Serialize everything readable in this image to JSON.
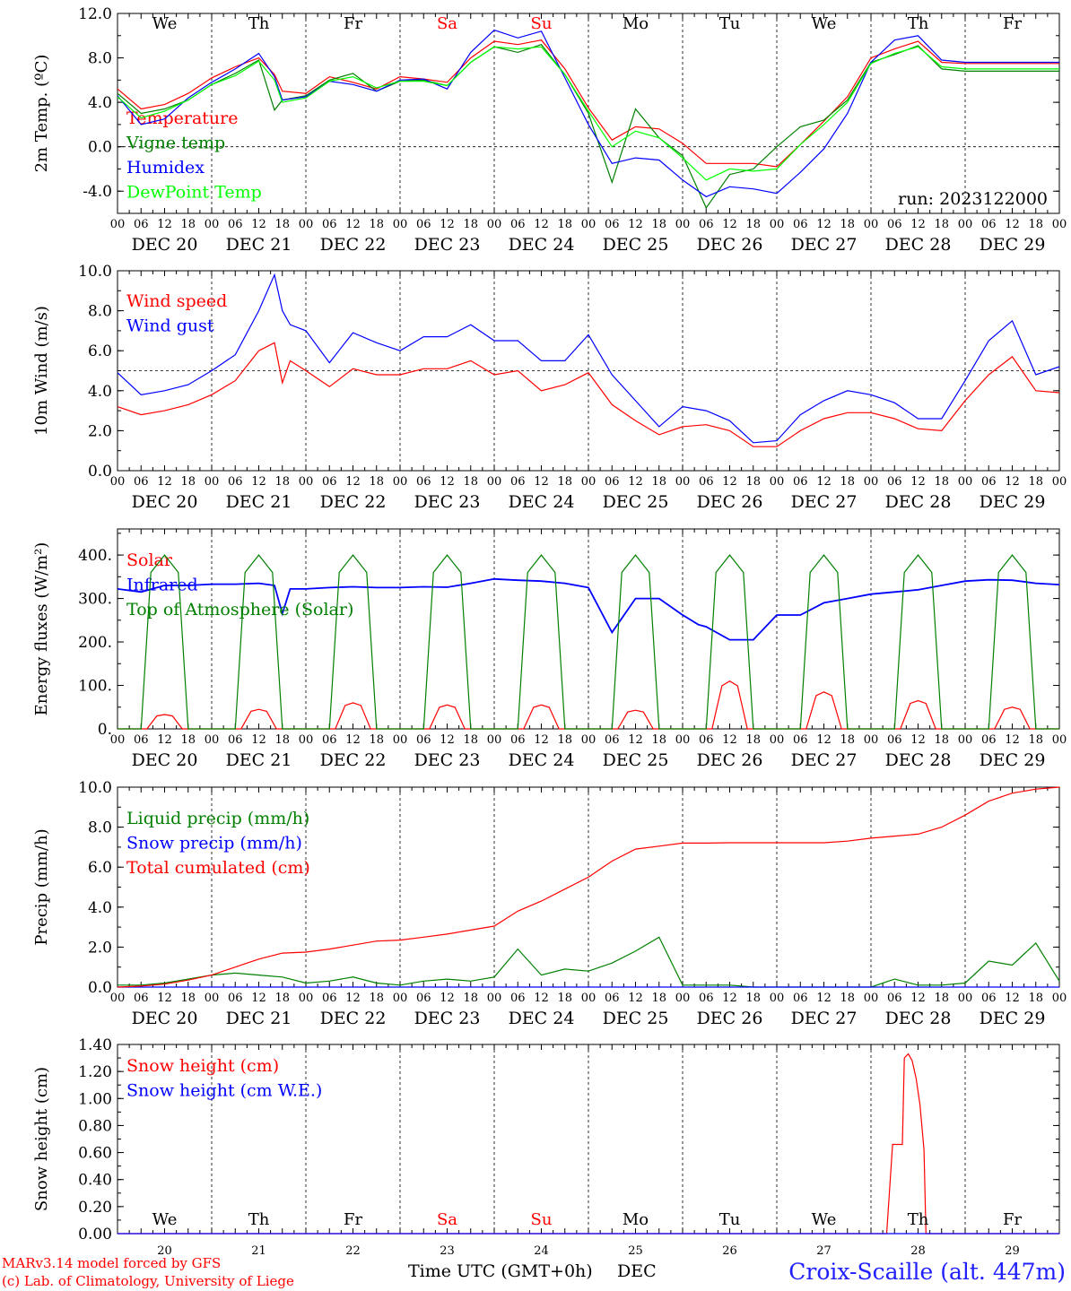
{
  "station": "Croix-Scaille (alt. 447m)",
  "run": "run: 2023122000",
  "credits": {
    "line1": "MARv3.14 model forced by GFS",
    "line2": "(c) Lab. of Climatology, University of Liege"
  },
  "xaxis": {
    "title": "Time UTC (GMT+0h)",
    "month": "DEC",
    "hour_labels": [
      "00",
      "06",
      "12",
      "18"
    ],
    "date_labels": [
      "DEC 20",
      "DEC 21",
      "DEC 22",
      "DEC 23",
      "DEC 24",
      "DEC 25",
      "DEC 26",
      "DEC 27",
      "DEC 28",
      "DEC 29"
    ],
    "day_numbers": [
      "20",
      "21",
      "22",
      "23",
      "24",
      "25",
      "26",
      "27",
      "28",
      "29"
    ],
    "weekdays": [
      "We",
      "Th",
      "Fr",
      "Sa",
      "Su",
      "Mo",
      "Tu",
      "We",
      "Th",
      "Fr"
    ],
    "weekday_colors": [
      "#000000",
      "#000000",
      "#000000",
      "#ff0000",
      "#ff0000",
      "#000000",
      "#000000",
      "#000000",
      "#000000",
      "#000000"
    ]
  },
  "colors": {
    "red": "#ff0000",
    "green": "#008000",
    "blue": "#0000ff",
    "lightgreen": "#00ff00"
  },
  "chart_data": [
    {
      "type": "line",
      "ylabel": "2m Temp. (ºC)",
      "ylim": [
        -6,
        12
      ],
      "yticks": [
        "-4.0",
        "0.0",
        "4.0",
        "8.0",
        "12.0"
      ],
      "ytick_values": [
        -4,
        0,
        4,
        8,
        12
      ],
      "reference_line": 0,
      "x_hours": [
        0,
        6,
        12,
        18,
        24,
        30,
        36,
        40,
        42,
        48,
        54,
        60,
        66,
        72,
        78,
        84,
        90,
        96,
        102,
        108,
        114,
        120,
        126,
        132,
        138,
        144,
        150,
        156,
        162,
        168,
        174,
        180,
        186,
        192,
        198,
        204,
        210,
        216,
        222,
        228,
        234,
        240
      ],
      "series": [
        {
          "name": "Temperature",
          "color": "#ff0000",
          "values": [
            5.2,
            3.4,
            3.8,
            4.8,
            6.2,
            7.2,
            8.0,
            6.5,
            5.0,
            4.8,
            6.3,
            5.8,
            5.2,
            6.3,
            6.1,
            5.8,
            8.0,
            9.5,
            9.2,
            9.6,
            7.0,
            3.5,
            0.6,
            1.8,
            1.6,
            0.3,
            -1.5,
            -1.5,
            -1.5,
            -1.8,
            0.2,
            2.3,
            4.5,
            8.0,
            8.8,
            9.5,
            7.6,
            7.5,
            7.5,
            7.5,
            7.5,
            7.5
          ]
        },
        {
          "name": "Vigne temp",
          "color": "#008000",
          "values": [
            4.8,
            3.0,
            3.4,
            4.2,
            5.6,
            6.6,
            7.8,
            3.3,
            4.2,
            4.6,
            6.0,
            6.6,
            5.0,
            5.9,
            6.0,
            5.5,
            7.6,
            9.0,
            8.5,
            9.2,
            6.5,
            3.0,
            -3.2,
            3.4,
            0.8,
            -0.8,
            -5.5,
            -2.5,
            -2.0,
            0.0,
            1.8,
            2.4,
            4.2,
            7.6,
            8.3,
            9.1,
            7.0,
            6.8,
            6.8,
            6.8,
            6.8,
            6.8
          ]
        },
        {
          "name": "Humidex",
          "color": "#0000ff",
          "values": [
            4.6,
            2.0,
            2.5,
            4.4,
            5.8,
            7.0,
            8.4,
            6.3,
            4.2,
            4.5,
            5.9,
            5.6,
            5.0,
            6.0,
            6.1,
            5.2,
            8.5,
            10.5,
            9.8,
            10.4,
            6.2,
            2.0,
            -1.5,
            -1.0,
            -1.2,
            -3.0,
            -4.5,
            -3.6,
            -3.8,
            -4.2,
            -2.3,
            -0.2,
            3.0,
            7.6,
            9.6,
            10.0,
            7.8,
            7.6,
            7.6,
            7.6,
            7.6,
            7.6
          ]
        },
        {
          "name": "DewPoint Temp",
          "color": "#00ff00",
          "values": [
            4.5,
            2.6,
            3.2,
            4.2,
            5.6,
            6.4,
            7.7,
            6.0,
            4.0,
            4.4,
            5.9,
            6.3,
            5.3,
            5.9,
            5.9,
            5.5,
            7.6,
            9.0,
            8.8,
            9.0,
            6.5,
            3.2,
            0.0,
            1.4,
            0.8,
            -1.0,
            -3.0,
            -2.0,
            -2.2,
            -2.0,
            0.2,
            2.0,
            4.0,
            7.5,
            8.4,
            9.0,
            7.2,
            7.0,
            7.0,
            7.0,
            7.0,
            7.0
          ]
        }
      ]
    },
    {
      "type": "line",
      "ylabel": "10m Wind (m/s)",
      "ylim": [
        0,
        10
      ],
      "yticks": [
        "0.0",
        "2.0",
        "4.0",
        "6.0",
        "8.0",
        "10.0"
      ],
      "ytick_values": [
        0,
        2,
        4,
        6,
        8,
        10
      ],
      "reference_line": 5,
      "x_hours": [
        0,
        6,
        12,
        18,
        24,
        30,
        36,
        40,
        42,
        44,
        48,
        54,
        60,
        66,
        72,
        78,
        84,
        90,
        96,
        102,
        108,
        114,
        120,
        126,
        132,
        138,
        144,
        150,
        156,
        162,
        168,
        174,
        180,
        186,
        192,
        198,
        204,
        210,
        216,
        222,
        228,
        234,
        240
      ],
      "series": [
        {
          "name": "Wind speed",
          "color": "#ff0000",
          "values": [
            3.2,
            2.8,
            3.0,
            3.3,
            3.8,
            4.5,
            6.0,
            6.4,
            4.4,
            5.5,
            5.0,
            4.2,
            5.1,
            4.8,
            4.8,
            5.1,
            5.1,
            5.5,
            4.8,
            5.0,
            4.0,
            4.3,
            4.9,
            3.3,
            2.5,
            1.8,
            2.2,
            2.3,
            2.0,
            1.2,
            1.2,
            2.0,
            2.6,
            2.9,
            2.9,
            2.6,
            2.1,
            2.0,
            3.5,
            4.8,
            5.7,
            4.0,
            3.9
          ]
        },
        {
          "name": "Wind gust",
          "color": "#0000ff",
          "values": [
            4.9,
            3.8,
            4.0,
            4.3,
            5.0,
            5.8,
            8.0,
            9.8,
            8.0,
            7.3,
            7.0,
            5.4,
            6.9,
            6.4,
            6.0,
            6.7,
            6.7,
            7.3,
            6.5,
            6.5,
            5.5,
            5.5,
            6.8,
            4.8,
            3.5,
            2.2,
            3.2,
            3.0,
            2.5,
            1.4,
            1.5,
            2.8,
            3.5,
            4.0,
            3.8,
            3.4,
            2.6,
            2.6,
            4.5,
            6.5,
            7.5,
            4.8,
            5.2
          ]
        }
      ]
    },
    {
      "type": "line",
      "ylabel": "Energy fluxes (W/m²)",
      "ylim": [
        0,
        460
      ],
      "yticks": [
        "0.",
        "100.",
        "200.",
        "300.",
        "400."
      ],
      "ytick_values": [
        0,
        100,
        200,
        300,
        400
      ],
      "x_hours": [
        0,
        6,
        12,
        18,
        24,
        30,
        36,
        40,
        42,
        44,
        48,
        54,
        60,
        66,
        72,
        78,
        84,
        90,
        96,
        102,
        108,
        114,
        120,
        126,
        132,
        138,
        144,
        148,
        150,
        156,
        162,
        168,
        174,
        180,
        186,
        192,
        198,
        204,
        210,
        216,
        222,
        228,
        234,
        240
      ],
      "series": [
        {
          "name": "Solar",
          "color": "#ff0000",
          "daily_peaks": [
            33,
            45,
            60,
            55,
            55,
            43,
            110,
            85,
            65,
            50
          ],
          "peak_hour": 12
        },
        {
          "name": "Infrared",
          "color": "#0000ff",
          "values": [
            322,
            315,
            330,
            330,
            333,
            333,
            335,
            330,
            265,
            322,
            322,
            325,
            327,
            325,
            325,
            327,
            326,
            335,
            345,
            342,
            340,
            335,
            325,
            222,
            300,
            300,
            262,
            240,
            235,
            205,
            205,
            262,
            262,
            290,
            300,
            310,
            315,
            320,
            330,
            340,
            343,
            342,
            335,
            332
          ]
        },
        {
          "name": "Top of Atmosphere (Solar)",
          "color": "#008000",
          "daily_peaks": [
            400,
            400,
            400,
            400,
            400,
            400,
            400,
            400,
            400,
            400
          ],
          "peak_hour": 12
        }
      ]
    },
    {
      "type": "line",
      "ylabel": "Precip (mm/h)",
      "ylim": [
        0,
        10
      ],
      "yticks": [
        "0.0",
        "2.0",
        "4.0",
        "6.0",
        "8.0",
        "10.0"
      ],
      "ytick_values": [
        0,
        2,
        4,
        6,
        8,
        10
      ],
      "x_hours": [
        0,
        6,
        12,
        18,
        24,
        30,
        36,
        42,
        48,
        54,
        60,
        66,
        72,
        78,
        84,
        90,
        96,
        102,
        108,
        114,
        120,
        126,
        132,
        138,
        144,
        150,
        156,
        162,
        168,
        174,
        180,
        186,
        192,
        198,
        204,
        210,
        216,
        222,
        228,
        234,
        240
      ],
      "series": [
        {
          "name": "Liquid precip (mm/h)",
          "color": "#008000",
          "values": [
            0.1,
            0.1,
            0.2,
            0.4,
            0.6,
            0.7,
            0.6,
            0.5,
            0.2,
            0.3,
            0.5,
            0.2,
            0.1,
            0.3,
            0.4,
            0.3,
            0.5,
            1.9,
            0.6,
            0.9,
            0.8,
            1.2,
            1.8,
            2.5,
            0.1,
            0.1,
            0.1,
            0.0,
            0.0,
            0.0,
            0.0,
            0.0,
            0.0,
            0.4,
            0.1,
            0.1,
            0.2,
            1.3,
            1.1,
            2.2,
            0.3
          ]
        },
        {
          "name": "Snow precip (mm/h)",
          "color": "#0000ff",
          "values": [
            0.0,
            0.0,
            0.0,
            0.0,
            0.0,
            0.0,
            0.0,
            0.0,
            0.0,
            0.0,
            0.0,
            0.0,
            0.0,
            0.0,
            0.0,
            0.0,
            0.0,
            0.0,
            0.0,
            0.0,
            0.0,
            0.0,
            0.0,
            0.0,
            0.0,
            0.0,
            0.0,
            0.0,
            0.0,
            0.0,
            0.0,
            0.0,
            0.0,
            0.0,
            0.0,
            0.0,
            0.0,
            0.0,
            0.0,
            0.0,
            0.0
          ]
        },
        {
          "name": "Total cumulated (cm)",
          "color": "#ff0000",
          "values": [
            0.0,
            0.05,
            0.15,
            0.35,
            0.6,
            1.0,
            1.4,
            1.7,
            1.75,
            1.9,
            2.1,
            2.3,
            2.35,
            2.5,
            2.65,
            2.85,
            3.05,
            3.8,
            4.3,
            4.9,
            5.5,
            6.3,
            6.9,
            7.05,
            7.2,
            7.2,
            7.22,
            7.22,
            7.22,
            7.22,
            7.22,
            7.3,
            7.45,
            7.55,
            7.65,
            8.0,
            8.6,
            9.3,
            9.7,
            9.9,
            10.0
          ]
        }
      ]
    },
    {
      "type": "line",
      "ylabel": "Snow height (cm)",
      "ylim": [
        0,
        1.4
      ],
      "yticks": [
        "0.00",
        "0.20",
        "0.40",
        "0.60",
        "0.80",
        "1.00",
        "1.20",
        "1.40"
      ],
      "ytick_values": [
        0,
        0.2,
        0.4,
        0.6,
        0.8,
        1.0,
        1.2,
        1.4
      ],
      "x_hours": [
        0,
        196,
        197.5,
        200,
        200.5,
        201.5,
        202.5,
        203.5,
        204.5,
        205.5,
        206,
        240
      ],
      "series": [
        {
          "name": "Snow height (cm)",
          "color": "#ff0000",
          "values": [
            0,
            0,
            0.66,
            0.66,
            1.3,
            1.33,
            1.28,
            1.15,
            0.95,
            0.62,
            0,
            0
          ]
        },
        {
          "name": "Snow height (cm W.E.)",
          "color": "#0000ff",
          "values": [
            0,
            0,
            0,
            0,
            0,
            0,
            0,
            0,
            0,
            0,
            0,
            0
          ]
        }
      ]
    }
  ]
}
